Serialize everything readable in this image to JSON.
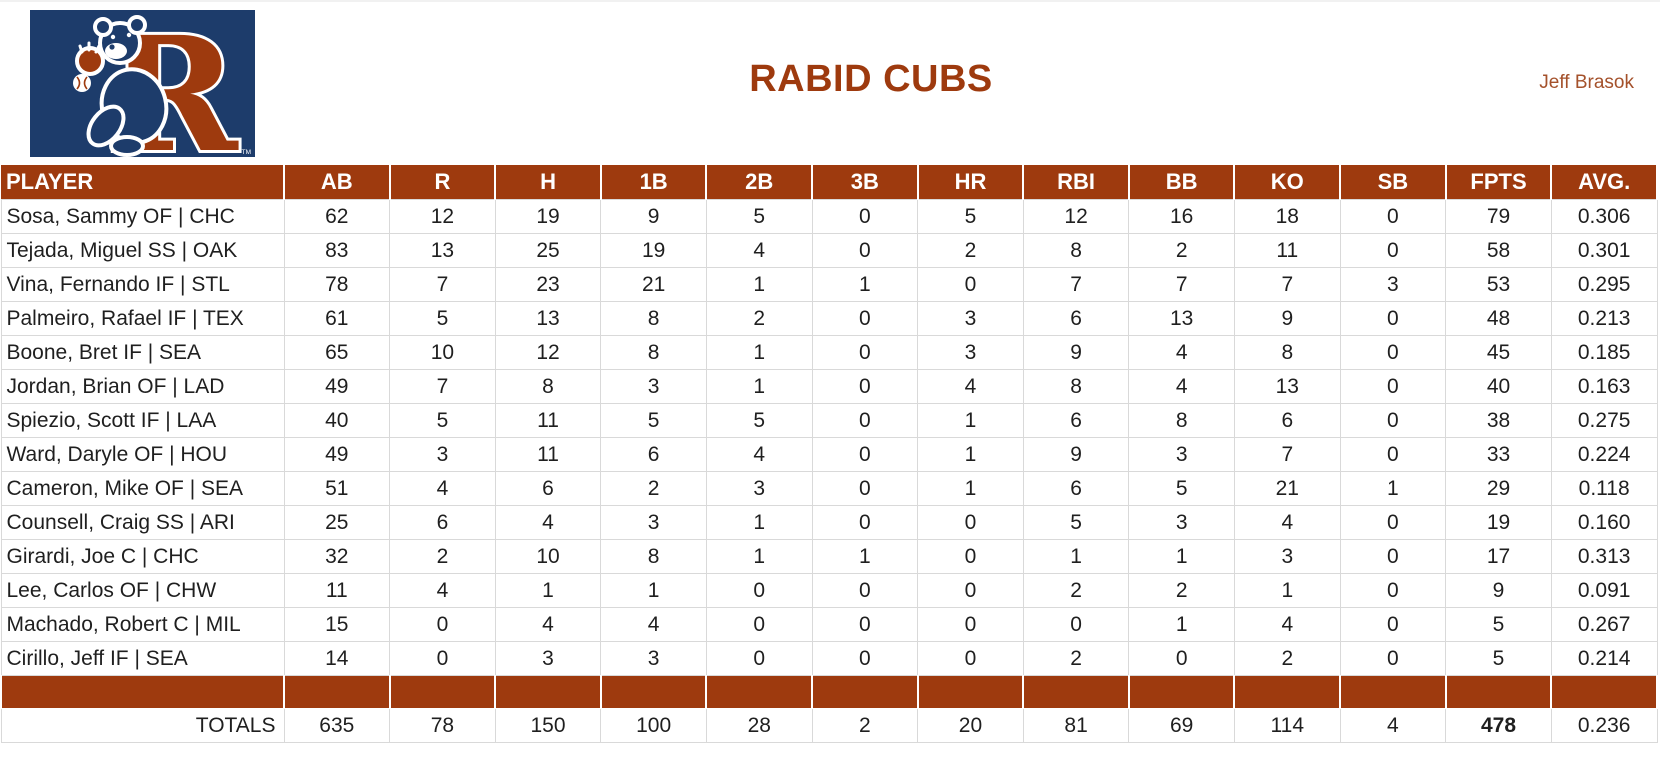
{
  "header": {
    "title": "RABID CUBS",
    "owner": "Jeff Brasok",
    "logo": {
      "letter": "R",
      "trademark": "TM"
    }
  },
  "colors": {
    "accent_rust": "#9E3A0E",
    "logo_navy": "#1D3C6B",
    "owner_text": "#A4512B",
    "grid_line": "#D9D9D9"
  },
  "table": {
    "columns": [
      "PLAYER",
      "AB",
      "R",
      "H",
      "1B",
      "2B",
      "3B",
      "HR",
      "RBI",
      "BB",
      "KO",
      "SB",
      "FPTS",
      "AVG."
    ],
    "rows": [
      {
        "player": "Sosa, Sammy OF | CHC",
        "stats": [
          62,
          12,
          19,
          9,
          5,
          0,
          5,
          12,
          16,
          18,
          0,
          79,
          "0.306"
        ]
      },
      {
        "player": "Tejada, Miguel SS | OAK",
        "stats": [
          83,
          13,
          25,
          19,
          4,
          0,
          2,
          8,
          2,
          11,
          0,
          58,
          "0.301"
        ]
      },
      {
        "player": "Vina, Fernando IF | STL",
        "stats": [
          78,
          7,
          23,
          21,
          1,
          1,
          0,
          7,
          7,
          7,
          3,
          53,
          "0.295"
        ]
      },
      {
        "player": "Palmeiro, Rafael IF | TEX",
        "stats": [
          61,
          5,
          13,
          8,
          2,
          0,
          3,
          6,
          13,
          9,
          0,
          48,
          "0.213"
        ]
      },
      {
        "player": "Boone, Bret IF | SEA",
        "stats": [
          65,
          10,
          12,
          8,
          1,
          0,
          3,
          9,
          4,
          8,
          0,
          45,
          "0.185"
        ]
      },
      {
        "player": "Jordan, Brian OF | LAD",
        "stats": [
          49,
          7,
          8,
          3,
          1,
          0,
          4,
          8,
          4,
          13,
          0,
          40,
          "0.163"
        ]
      },
      {
        "player": "Spiezio, Scott IF | LAA",
        "stats": [
          40,
          5,
          11,
          5,
          5,
          0,
          1,
          6,
          8,
          6,
          0,
          38,
          "0.275"
        ]
      },
      {
        "player": "Ward, Daryle OF | HOU",
        "stats": [
          49,
          3,
          11,
          6,
          4,
          0,
          1,
          9,
          3,
          7,
          0,
          33,
          "0.224"
        ]
      },
      {
        "player": "Cameron, Mike OF | SEA",
        "stats": [
          51,
          4,
          6,
          2,
          3,
          0,
          1,
          6,
          5,
          21,
          1,
          29,
          "0.118"
        ]
      },
      {
        "player": "Counsell, Craig SS | ARI",
        "stats": [
          25,
          6,
          4,
          3,
          1,
          0,
          0,
          5,
          3,
          4,
          0,
          19,
          "0.160"
        ]
      },
      {
        "player": "Girardi, Joe C | CHC",
        "stats": [
          32,
          2,
          10,
          8,
          1,
          1,
          0,
          1,
          1,
          3,
          0,
          17,
          "0.313"
        ]
      },
      {
        "player": "Lee, Carlos OF | CHW",
        "stats": [
          11,
          4,
          1,
          1,
          0,
          0,
          0,
          2,
          2,
          1,
          0,
          9,
          "0.091"
        ]
      },
      {
        "player": "Machado, Robert C | MIL",
        "stats": [
          15,
          0,
          4,
          4,
          0,
          0,
          0,
          0,
          1,
          4,
          0,
          5,
          "0.267"
        ]
      },
      {
        "player": "Cirillo, Jeff IF | SEA",
        "stats": [
          14,
          0,
          3,
          3,
          0,
          0,
          0,
          2,
          0,
          2,
          0,
          5,
          "0.214"
        ]
      }
    ],
    "totals": {
      "label": "TOTALS",
      "stats": [
        635,
        78,
        150,
        100,
        28,
        2,
        20,
        81,
        69,
        114,
        4,
        478,
        "0.236"
      ],
      "bold_stat_index": 11
    }
  }
}
